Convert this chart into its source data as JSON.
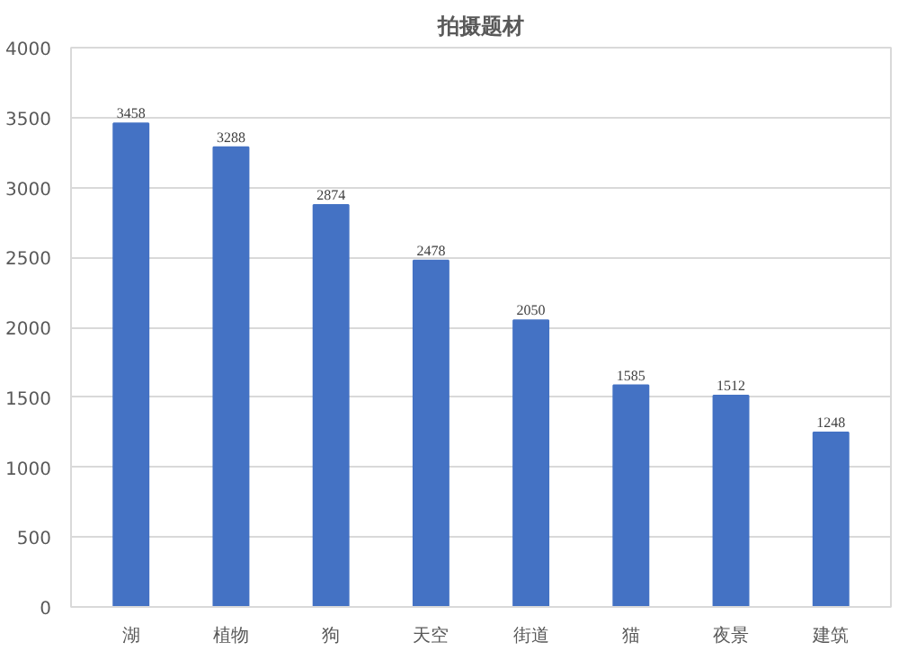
{
  "chart_data": {
    "type": "bar",
    "title": "拍摄题材",
    "categories": [
      "湖",
      "植物",
      "狗",
      "天空",
      "街道",
      "猫",
      "夜景",
      "建筑"
    ],
    "values": [
      3458,
      3288,
      2874,
      2478,
      2050,
      1585,
      1512,
      1248
    ],
    "color": "#4472c4",
    "ylim": [
      0,
      4000
    ],
    "yticks": [
      0,
      500,
      1000,
      1500,
      2000,
      2500,
      3000,
      3500,
      4000
    ],
    "grid": "y",
    "data_labels": true
  }
}
